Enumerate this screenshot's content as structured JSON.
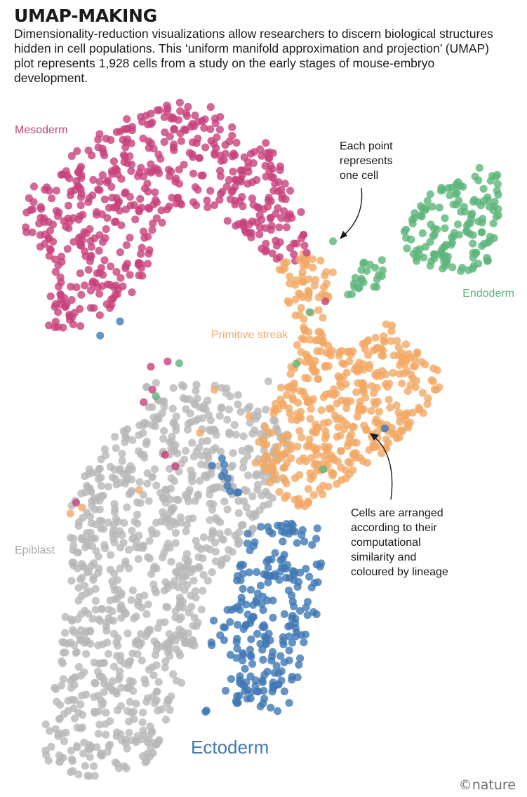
{
  "header": {
    "title": "UMAP-MAKING",
    "intro": "Dimensionality-reduction visualizations allow researchers to discern biological structures hidden in cell populations. This ‘uniform manifold approximation and projection’ (UMAP) plot represents 1,928 cells from a study on the early stages of mouse-embryo development."
  },
  "chart_data": {
    "type": "scatter",
    "title": "",
    "xlabel": "",
    "ylabel": "",
    "axes_shown": false,
    "grid": false,
    "total_cells": 1928,
    "series": [
      {
        "name": "Mesoderm",
        "color": "#c8417c"
      },
      {
        "name": "Endoderm",
        "color": "#5cb57a"
      },
      {
        "name": "Primitive streak",
        "color": "#f2a864"
      },
      {
        "name": "Epiblast",
        "color": "#b8b8b8"
      },
      {
        "name": "Ectoderm",
        "color": "#3f78b4"
      }
    ],
    "annotations": [
      {
        "lines": [
          "Each point",
          "represents",
          "one cell"
        ]
      },
      {
        "lines": [
          "Cells are arranged",
          "according to their",
          "computational",
          "similarity and",
          "coloured by lineage"
        ]
      }
    ]
  },
  "credit": "©nature"
}
